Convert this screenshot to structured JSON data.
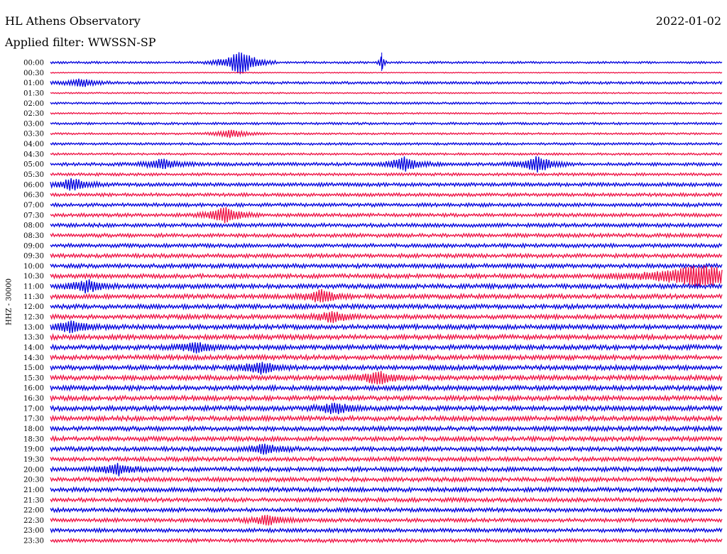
{
  "header": {
    "station": "HL Athens Observatory",
    "filter": "Applied filter: WWSSN-SP",
    "date": "2022-01-02"
  },
  "chart_data": {
    "type": "line",
    "title": "HL Athens Observatory",
    "date": "2022-01-02",
    "filter": "WWSSN-SP",
    "channel_label": "HHZ - 30000",
    "ylabel": "HHZ - 30000",
    "row_labels": [
      "00:00",
      "00:30",
      "01:00",
      "01:30",
      "02:00",
      "02:30",
      "03:00",
      "03:30",
      "04:00",
      "04:30",
      "05:00",
      "05:30",
      "06:00",
      "06:30",
      "07:00",
      "07:30",
      "08:00",
      "08:30",
      "09:00",
      "09:30",
      "10:00",
      "10:30",
      "11:00",
      "11:30",
      "12:00",
      "12:30",
      "13:00",
      "13:30",
      "14:00",
      "14:30",
      "15:00",
      "15:30",
      "16:00",
      "16:30",
      "17:00",
      "17:30",
      "18:00",
      "18:30",
      "19:00",
      "19:30",
      "20:00",
      "20:30",
      "21:00",
      "21:30",
      "22:00",
      "22:30",
      "23:00",
      "23:30"
    ],
    "colors": [
      "#0000dd",
      "#ee1144"
    ],
    "noise_level": [
      0.45,
      0.2,
      0.55,
      0.3,
      0.45,
      0.35,
      0.5,
      0.4,
      0.5,
      0.45,
      0.7,
      0.6,
      0.75,
      0.7,
      0.75,
      0.75,
      0.8,
      0.8,
      0.8,
      0.85,
      0.9,
      0.9,
      0.95,
      0.95,
      0.95,
      0.95,
      1.0,
      1.0,
      1.0,
      1.0,
      1.0,
      1.0,
      1.0,
      1.0,
      1.0,
      1.0,
      0.95,
      0.95,
      0.9,
      0.9,
      0.9,
      0.9,
      0.9,
      0.85,
      0.85,
      0.8,
      0.8,
      0.75
    ],
    "events": [
      {
        "row": 0,
        "minute": 8.5,
        "amplitude": 20
      },
      {
        "row": 0,
        "minute": 14.8,
        "amplitude": 14,
        "spike": true
      },
      {
        "row": 2,
        "minute": 1.4,
        "amplitude": 6
      },
      {
        "row": 7,
        "minute": 8.1,
        "amplitude": 6
      },
      {
        "row": 10,
        "minute": 5.0,
        "amplitude": 8
      },
      {
        "row": 10,
        "minute": 15.8,
        "amplitude": 10
      },
      {
        "row": 10,
        "minute": 21.8,
        "amplitude": 12
      },
      {
        "row": 12,
        "minute": 1.0,
        "amplitude": 9
      },
      {
        "row": 15,
        "minute": 7.8,
        "amplitude": 12
      },
      {
        "row": 21,
        "minute": 29.0,
        "amplitude": 16,
        "burst": true
      },
      {
        "row": 22,
        "minute": 1.6,
        "amplitude": 9
      },
      {
        "row": 23,
        "minute": 12.1,
        "amplitude": 9
      },
      {
        "row": 25,
        "minute": 12.6,
        "amplitude": 8
      },
      {
        "row": 26,
        "minute": 0.9,
        "amplitude": 9
      },
      {
        "row": 28,
        "minute": 6.5,
        "amplitude": 8
      },
      {
        "row": 30,
        "minute": 9.4,
        "amplitude": 9
      },
      {
        "row": 31,
        "minute": 14.6,
        "amplitude": 9
      },
      {
        "row": 34,
        "minute": 12.7,
        "amplitude": 8
      },
      {
        "row": 38,
        "minute": 9.6,
        "amplitude": 7
      },
      {
        "row": 40,
        "minute": 3.0,
        "amplitude": 8
      },
      {
        "row": 45,
        "minute": 9.7,
        "amplitude": 8
      }
    ]
  }
}
